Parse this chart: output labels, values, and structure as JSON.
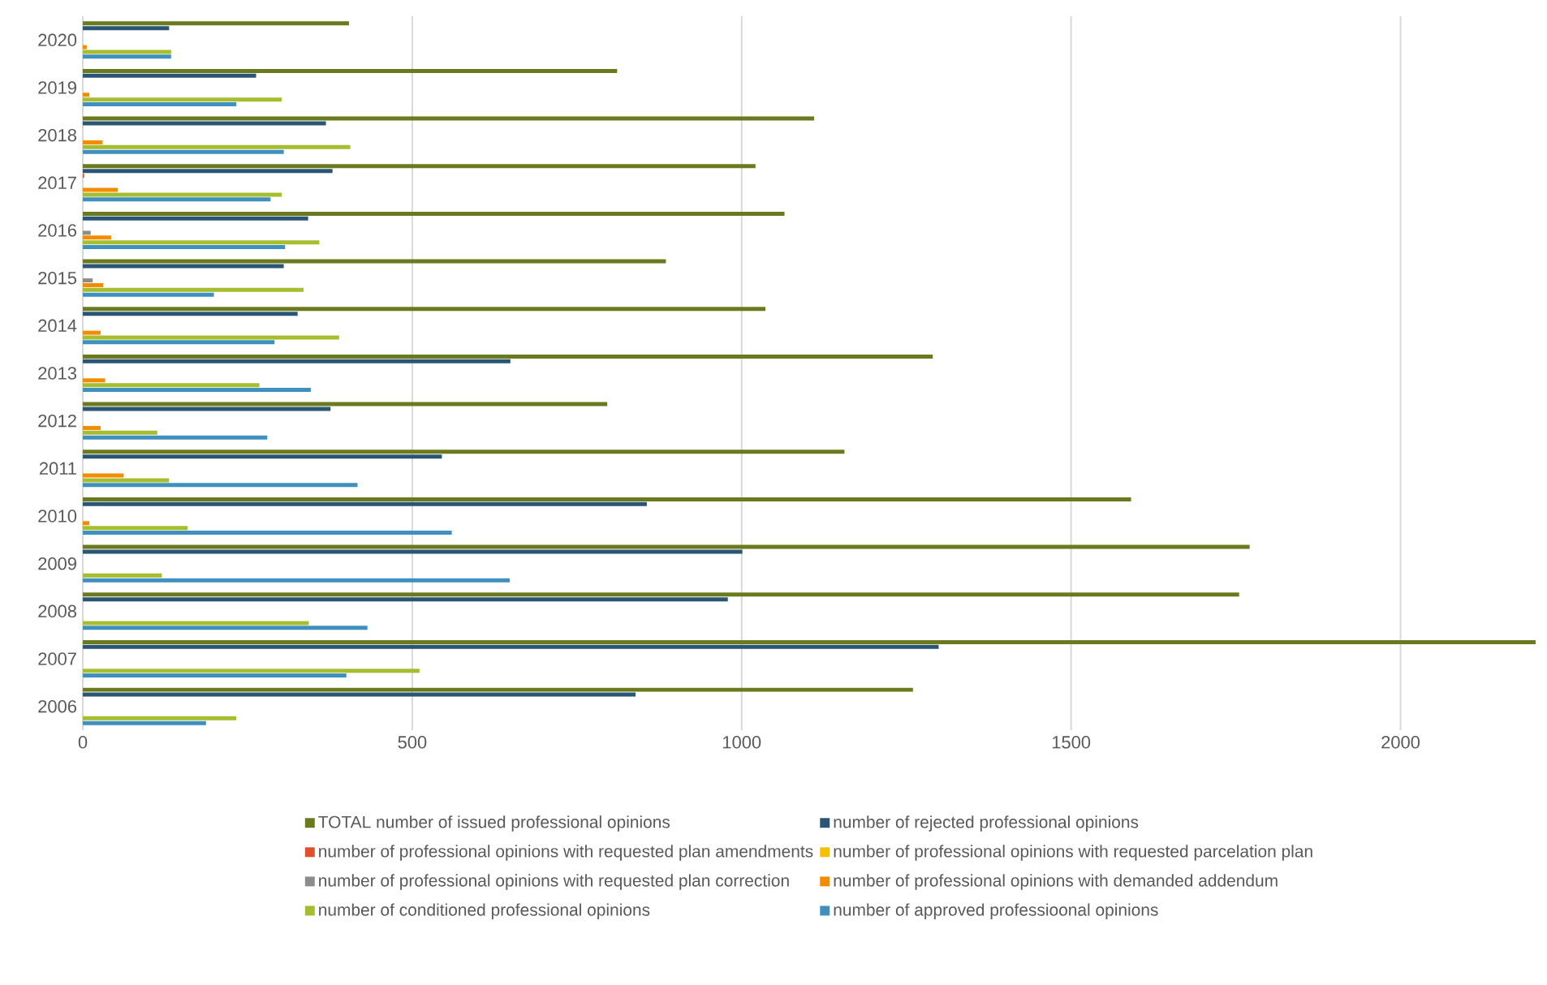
{
  "chart_data": {
    "type": "bar",
    "orientation": "horizontal",
    "categories": [
      "2020",
      "2019",
      "2018",
      "2017",
      "2016",
      "2015",
      "2014",
      "2013",
      "2012",
      "2011",
      "2010",
      "2009",
      "2008",
      "2007",
      "2006"
    ],
    "series": [
      {
        "name": "TOTAL number of issued professional opinions",
        "color": "#6b7a1e",
        "values": [
          404,
          811,
          1110,
          1021,
          1065,
          885,
          1036,
          1290,
          796,
          1156,
          1591,
          1771,
          1755,
          2205,
          1260
        ]
      },
      {
        "name": "number of  rejected professional opinions",
        "color": "#2a5673",
        "values": [
          131,
          263,
          369,
          379,
          342,
          305,
          326,
          649,
          376,
          545,
          856,
          1001,
          979,
          1299,
          839
        ]
      },
      {
        "name": "number of professional opinions with requested plan amendments",
        "color": "#e0502a",
        "values": [
          0,
          0,
          0,
          2,
          0,
          0,
          0,
          0,
          0,
          0,
          0,
          0,
          0,
          0,
          0
        ]
      },
      {
        "name": "number of professional opinions with requested parcelation plan",
        "color": "#f5c000",
        "values": [
          0,
          0,
          0,
          0,
          0,
          0,
          0,
          0,
          0,
          0,
          0,
          0,
          0,
          0,
          0
        ]
      },
      {
        "name": "number of professional opinions with requested plan correction",
        "color": "#8c8c8c",
        "values": [
          0,
          0,
          0,
          0,
          12,
          15,
          0,
          0,
          0,
          0,
          0,
          0,
          0,
          0,
          0
        ]
      },
      {
        "name": "number of professional opinions with demanded addendum",
        "color": "#f28c00",
        "values": [
          6,
          10,
          30,
          53,
          43,
          31,
          27,
          34,
          27,
          62,
          10,
          0,
          0,
          0,
          0
        ]
      },
      {
        "name": "number of conditioned professional opinions",
        "color": "#a5bd2e",
        "values": [
          134,
          302,
          406,
          302,
          359,
          335,
          389,
          268,
          113,
          131,
          159,
          120,
          343,
          511,
          233
        ]
      },
      {
        "name": "number of approved professioonal opinions",
        "color": "#3f8fbf",
        "values": [
          134,
          233,
          305,
          285,
          307,
          199,
          291,
          346,
          280,
          417,
          560,
          648,
          432,
          400,
          187
        ]
      }
    ],
    "xlim": [
      0,
      2210
    ],
    "xticks": [
      0,
      500,
      1000,
      1500,
      2000
    ],
    "grid": "x",
    "legend": "bottom"
  }
}
